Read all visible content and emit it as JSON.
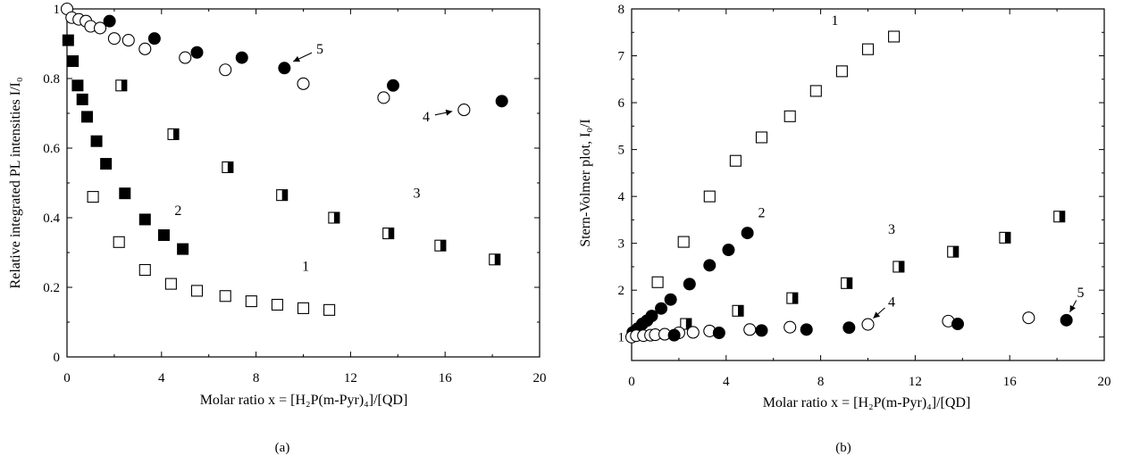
{
  "chart_data": [
    {
      "type": "scatter",
      "panel_label": "(a)",
      "ylabel": "Relative integrated PL intensities I/I₀",
      "xlabel": "Molar ratio x = [H₂P(m-Pyr)₄]/[QD]",
      "xlim": [
        0,
        20
      ],
      "ylim": [
        0,
        1
      ],
      "xticks": [
        "0",
        "4",
        "8",
        "12",
        "16",
        "20"
      ],
      "yticks": [
        "0",
        "0.2",
        "0.4",
        "0.6",
        "0.8",
        "1"
      ],
      "grid": false,
      "series": [
        {
          "name": "1",
          "marker": "open-square",
          "points": [
            [
              1.1,
              0.46
            ],
            [
              2.2,
              0.33
            ],
            [
              3.3,
              0.25
            ],
            [
              4.4,
              0.21
            ],
            [
              5.5,
              0.19
            ],
            [
              6.7,
              0.175
            ],
            [
              7.8,
              0.16
            ],
            [
              8.9,
              0.15
            ],
            [
              10.0,
              0.14
            ],
            [
              11.1,
              0.135
            ]
          ]
        },
        {
          "name": "2",
          "marker": "filled-square",
          "points": [
            [
              0.05,
              0.91
            ],
            [
              0.25,
              0.85
            ],
            [
              0.45,
              0.78
            ],
            [
              0.65,
              0.74
            ],
            [
              0.85,
              0.69
            ],
            [
              1.25,
              0.62
            ],
            [
              1.65,
              0.555
            ],
            [
              2.45,
              0.47
            ],
            [
              3.3,
              0.395
            ],
            [
              4.1,
              0.35
            ],
            [
              4.9,
              0.31
            ]
          ]
        },
        {
          "name": "3",
          "marker": "half-square",
          "points": [
            [
              2.3,
              0.78
            ],
            [
              4.5,
              0.64
            ],
            [
              6.8,
              0.545
            ],
            [
              9.1,
              0.465
            ],
            [
              11.3,
              0.4
            ],
            [
              13.6,
              0.355
            ],
            [
              15.8,
              0.32
            ],
            [
              18.1,
              0.28
            ]
          ]
        },
        {
          "name": "4",
          "marker": "open-circle",
          "points": [
            [
              0.0,
              1.0
            ],
            [
              0.2,
              0.975
            ],
            [
              0.5,
              0.97
            ],
            [
              0.8,
              0.965
            ],
            [
              1.0,
              0.95
            ],
            [
              1.4,
              0.945
            ],
            [
              2.0,
              0.915
            ],
            [
              2.6,
              0.91
            ],
            [
              3.3,
              0.885
            ],
            [
              5.0,
              0.86
            ],
            [
              6.7,
              0.825
            ],
            [
              10.0,
              0.785
            ],
            [
              13.4,
              0.745
            ],
            [
              16.8,
              0.71
            ]
          ]
        },
        {
          "name": "5",
          "marker": "filled-circle",
          "points": [
            [
              1.8,
              0.965
            ],
            [
              3.7,
              0.915
            ],
            [
              5.5,
              0.875
            ],
            [
              7.4,
              0.86
            ],
            [
              9.2,
              0.83
            ],
            [
              13.8,
              0.78
            ],
            [
              18.4,
              0.735
            ]
          ]
        }
      ],
      "series_labels": [
        "1",
        "2",
        "3",
        "4",
        "5"
      ]
    },
    {
      "type": "scatter",
      "panel_label": "(b)",
      "ylabel": "Stern-Volmer plot, I₀/I",
      "xlabel": "Molar ratio x = [H₂P(m-Pyr)₄]/[QD]",
      "xlim": [
        0,
        20
      ],
      "ylim": [
        0.5,
        8
      ],
      "xticks": [
        "0",
        "4",
        "8",
        "12",
        "16",
        "20"
      ],
      "yticks": [
        "1",
        "2",
        "3",
        "4",
        "5",
        "6",
        "7",
        "8"
      ],
      "grid": false,
      "series": [
        {
          "name": "1",
          "marker": "open-square",
          "points": [
            [
              1.1,
              2.17
            ],
            [
              2.2,
              3.03
            ],
            [
              3.3,
              4.0
            ],
            [
              4.4,
              4.76
            ],
            [
              5.5,
              5.26
            ],
            [
              6.7,
              5.71
            ],
            [
              7.8,
              6.25
            ],
            [
              8.9,
              6.67
            ],
            [
              10.0,
              7.14
            ],
            [
              11.1,
              7.41
            ]
          ]
        },
        {
          "name": "2",
          "marker": "filled-square-circle",
          "points": [
            [
              0.05,
              1.1
            ],
            [
              0.25,
              1.18
            ],
            [
              0.45,
              1.28
            ],
            [
              0.65,
              1.35
            ],
            [
              0.85,
              1.45
            ],
            [
              1.25,
              1.61
            ],
            [
              1.65,
              1.8
            ],
            [
              2.45,
              2.13
            ],
            [
              3.3,
              2.53
            ],
            [
              4.1,
              2.86
            ],
            [
              4.9,
              3.22
            ]
          ]
        },
        {
          "name": "3",
          "marker": "half-square",
          "points": [
            [
              2.3,
              1.28
            ],
            [
              4.5,
              1.56
            ],
            [
              6.8,
              1.83
            ],
            [
              9.1,
              2.15
            ],
            [
              11.3,
              2.5
            ],
            [
              13.6,
              2.82
            ],
            [
              15.8,
              3.12
            ],
            [
              18.1,
              3.57
            ]
          ]
        },
        {
          "name": "4",
          "marker": "open-circle",
          "points": [
            [
              0.0,
              1.0
            ],
            [
              0.2,
              1.03
            ],
            [
              0.5,
              1.03
            ],
            [
              0.8,
              1.04
            ],
            [
              1.0,
              1.05
            ],
            [
              1.4,
              1.06
            ],
            [
              2.0,
              1.09
            ],
            [
              2.6,
              1.1
            ],
            [
              3.3,
              1.13
            ],
            [
              5.0,
              1.16
            ],
            [
              6.7,
              1.21
            ],
            [
              10.0,
              1.27
            ],
            [
              13.4,
              1.34
            ],
            [
              16.8,
              1.41
            ]
          ]
        },
        {
          "name": "5",
          "marker": "filled-circle",
          "points": [
            [
              1.8,
              1.04
            ],
            [
              3.7,
              1.09
            ],
            [
              5.5,
              1.14
            ],
            [
              7.4,
              1.16
            ],
            [
              9.2,
              1.2
            ],
            [
              13.8,
              1.28
            ],
            [
              18.4,
              1.36
            ]
          ]
        }
      ],
      "series_labels": [
        "1",
        "2",
        "3",
        "4",
        "5"
      ]
    }
  ]
}
